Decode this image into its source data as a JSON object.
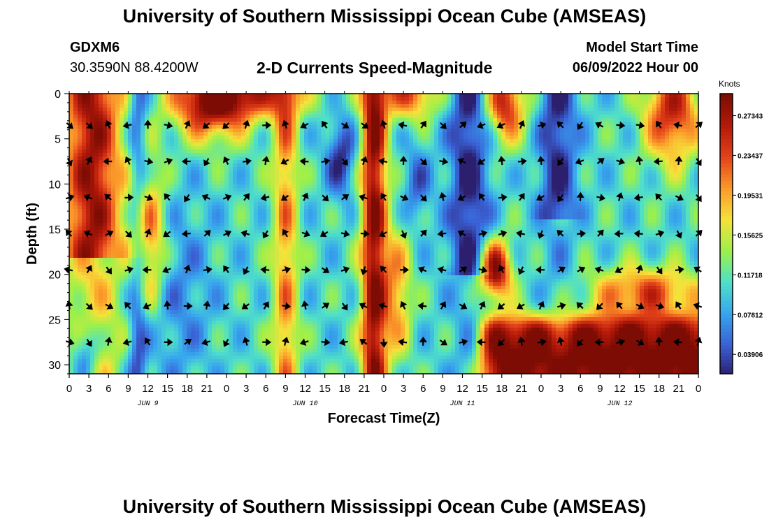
{
  "header": {
    "title": "University of Southern Mississippi Ocean Cube (AMSEAS)",
    "station_id": "GDXM6",
    "station_coords": "30.3590N  88.4200W",
    "chart_title": "2-D Currents Speed-Magnitude",
    "model_start_label": "Model Start Time",
    "model_start_value": "06/09/2022 Hour 00"
  },
  "footer": {
    "title": "University of Southern Mississippi Ocean Cube (AMSEAS)"
  },
  "colors": {
    "ramp": [
      "#2c1f6e",
      "#3a62d6",
      "#37a6ee",
      "#4fe0c8",
      "#9cf04a",
      "#f6e23a",
      "#fb9a2a",
      "#e3431a",
      "#b51a0a",
      "#7d0c04"
    ]
  },
  "chart_data": {
    "type": "heatmap",
    "title": "2-D Currents Speed-Magnitude",
    "xlabel": "Forecast Time(Z)",
    "ylabel": "Depth (ft)",
    "x_ticks": [
      "0",
      "3",
      "6",
      "9",
      "12",
      "15",
      "18",
      "21",
      "0",
      "3",
      "6",
      "9",
      "12",
      "15",
      "18",
      "21",
      "0",
      "3",
      "6",
      "9",
      "12",
      "15",
      "18",
      "21",
      "0",
      "3",
      "6",
      "9",
      "12",
      "15",
      "18",
      "21",
      "0"
    ],
    "date_labels": [
      {
        "text": "JUN 9",
        "at_hour": 12
      },
      {
        "text": "JUN 10",
        "at_hour": 36
      },
      {
        "text": "JUN 11",
        "at_hour": 60
      },
      {
        "text": "JUN 12",
        "at_hour": 84
      }
    ],
    "xlim_hours": [
      0,
      96
    ],
    "ylim_ft": [
      0,
      31
    ],
    "y_ticks": [
      0,
      5,
      10,
      15,
      20,
      25,
      30
    ],
    "colorbar": {
      "label": "Knots",
      "ticks": [
        "0.27343",
        "0.23437",
        "0.19531",
        "0.15625",
        "0.11718",
        "0.07812",
        "0.03906"
      ],
      "range": [
        0.02,
        0.295
      ]
    },
    "arrow_depths_ft": [
      3.5,
      7.5,
      11.5,
      15.5,
      19.5,
      23.5,
      27.5
    ],
    "arrow_hours": [
      0,
      3,
      6,
      9,
      12,
      15,
      18,
      21,
      24,
      27,
      30,
      33,
      36,
      39,
      42,
      45,
      48,
      51,
      54,
      57,
      60,
      63,
      66,
      69,
      72,
      75,
      78,
      81,
      84,
      87,
      90,
      93,
      96
    ]
  }
}
